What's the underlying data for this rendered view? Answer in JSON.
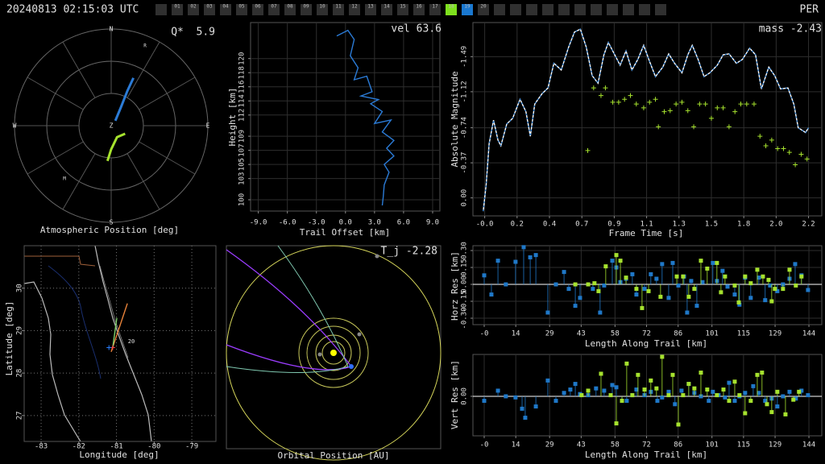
{
  "header": {
    "timestamp": "20240813 02:15:03 UTC",
    "station": "PER",
    "tabs": [
      {
        "label": "01",
        "color": "#303030"
      },
      {
        "label": "02",
        "color": "#303030"
      },
      {
        "label": "03",
        "color": "#303030"
      },
      {
        "label": "04",
        "color": "#303030"
      },
      {
        "label": "05",
        "color": "#303030"
      },
      {
        "label": "06",
        "color": "#303030"
      },
      {
        "label": "07",
        "color": "#303030"
      },
      {
        "label": "08",
        "color": "#303030"
      },
      {
        "label": "09",
        "color": "#303030"
      },
      {
        "label": "10",
        "color": "#303030"
      },
      {
        "label": "11",
        "color": "#303030"
      },
      {
        "label": "12",
        "color": "#303030"
      },
      {
        "label": "13",
        "color": "#303030"
      },
      {
        "label": "14",
        "color": "#303030"
      },
      {
        "label": "15",
        "color": "#303030"
      },
      {
        "label": "16",
        "color": "#303030"
      },
      {
        "label": "17",
        "color": "#303030"
      },
      {
        "label": "18",
        "color": "#7ee01e"
      },
      {
        "label": "19",
        "color": "#1a78d0"
      },
      {
        "label": "20",
        "color": "#303030"
      }
    ]
  },
  "chart_data": [
    {
      "type": "polar",
      "xlabel": "Atmospheric Position [deg]",
      "annotation": "Q*  5.9",
      "directions": [
        "N",
        "E",
        "S",
        "W"
      ],
      "center_label": "Z",
      "labels": [
        "R",
        "M"
      ],
      "rlim": [
        0,
        90
      ],
      "series": [
        {
          "color": "#2b7bd6",
          "azimuth": [
            40,
            28,
            25,
            25
          ],
          "zenith": [
            6,
            19,
            36,
            49
          ]
        },
        {
          "color": "#a6e22e",
          "azimuth": [
            120,
            153,
            180,
            186
          ],
          "zenith": [
            15,
            12,
            22,
            33
          ]
        }
      ]
    },
    {
      "type": "line",
      "xlabel": "Trail Offset [km]",
      "ylabel": "Height [km]",
      "annotation": "vel 63.6",
      "grid": true,
      "xlim": [
        -9.8,
        9.75
      ],
      "ylim": [
        98.4,
        125.1
      ],
      "xticks": [
        {
          "value": -9,
          "label": "-9.0"
        },
        {
          "value": -6,
          "label": "-6.0"
        },
        {
          "value": -3,
          "label": "-3.0"
        },
        {
          "value": 0,
          "label": "0.0"
        },
        {
          "value": 3,
          "label": "3.0"
        },
        {
          "value": 6,
          "label": "6.0"
        },
        {
          "value": 9,
          "label": "9.0"
        }
      ],
      "yticks": [
        100,
        103,
        105,
        107,
        109,
        112,
        114,
        116,
        118,
        120
      ],
      "series": [
        {
          "color": "#2b7bd6",
          "style": "line",
          "x": [
            -0.9,
            0.25,
            0.9,
            0.5,
            1.3,
            0.9,
            2.2,
            2.75,
            1.6,
            3.4,
            2.6,
            3.8,
            3,
            4.7,
            3.8,
            5,
            4.25,
            5,
            4,
            4.5,
            4,
            3.9,
            3.8
          ],
          "values": [
            123.2,
            124,
            122.7,
            120.4,
            118.7,
            117,
            117.5,
            115.3,
            114.7,
            114.2,
            113.6,
            112.5,
            110.8,
            111.3,
            109.6,
            108.4,
            107.3,
            106.2,
            105,
            103.9,
            102.1,
            100.4,
            99.2
          ]
        }
      ]
    },
    {
      "type": "line",
      "xlabel": "Frame Time [s]",
      "ylabel": "Absolute Magnitude",
      "annotation": "mass -2.43",
      "grid": true,
      "xlim": [
        -0.08,
        2.29
      ],
      "ylim": [
        0.19,
        -1.85
      ],
      "xticks": [
        {
          "value": 0,
          "label": "-0.0"
        },
        {
          "value": 0.22,
          "label": "0.2"
        },
        {
          "value": 0.44,
          "label": "0.4"
        },
        {
          "value": 0.66,
          "label": "0.7"
        },
        {
          "value": 0.88,
          "label": "0.9"
        },
        1.1,
        {
          "value": 1.32,
          "label": "1.3"
        },
        {
          "value": 1.54,
          "label": "1.5"
        },
        {
          "value": 1.76,
          "label": "1.8"
        },
        {
          "value": 1.98,
          "label": "2.0"
        },
        2.2
      ],
      "yticks": [
        {
          "value": 0,
          "label": "0.00"
        },
        -0.37,
        -0.74,
        -1.12,
        -1.49
      ],
      "series": [
        {
          "color": "#ffffff",
          "marker_color": "#2f7fd0",
          "style": "line",
          "x": [
            -0.01,
            0.01,
            0.03,
            0.06,
            0.09,
            0.11,
            0.15,
            0.19,
            0.24,
            0.28,
            0.31,
            0.34,
            0.39,
            0.43,
            0.47,
            0.52,
            0.57,
            0.61,
            0.65,
            0.69,
            0.73,
            0.77,
            0.81,
            0.84,
            0.88,
            0.92,
            0.96,
            1.0,
            1.04,
            1.08,
            1.12,
            1.16,
            1.21,
            1.25,
            1.29,
            1.34,
            1.38,
            1.41,
            1.45,
            1.49,
            1.53,
            1.58,
            1.62,
            1.66,
            1.71,
            1.75,
            1.8,
            1.84,
            1.88,
            1.93,
            1.97,
            2.01,
            2.06,
            2.1,
            2.13,
            2.18,
            2.2
          ],
          "values": [
            0.14,
            -0.14,
            -0.57,
            -0.82,
            -0.61,
            -0.55,
            -0.78,
            -0.84,
            -1.04,
            -0.91,
            -0.65,
            -0.99,
            -1.1,
            -1.16,
            -1.42,
            -1.35,
            -1.59,
            -1.75,
            -1.78,
            -1.59,
            -1.29,
            -1.21,
            -1.51,
            -1.64,
            -1.52,
            -1.4,
            -1.55,
            -1.35,
            -1.46,
            -1.61,
            -1.44,
            -1.28,
            -1.38,
            -1.52,
            -1.42,
            -1.32,
            -1.51,
            -1.61,
            -1.46,
            -1.28,
            -1.32,
            -1.4,
            -1.51,
            -1.52,
            -1.42,
            -1.46,
            -1.58,
            -1.51,
            -1.15,
            -1.38,
            -1.29,
            -1.15,
            -1.16,
            -0.99,
            -0.74,
            -0.69,
            -0.74
          ]
        },
        {
          "color": "#a6e22e",
          "style": "plus",
          "x": [
            0.7,
            0.74,
            0.79,
            0.82,
            0.87,
            0.91,
            0.95,
            0.99,
            1.03,
            1.08,
            1.12,
            1.16,
            1.18,
            1.22,
            1.26,
            1.3,
            1.34,
            1.38,
            1.42,
            1.46,
            1.5,
            1.54,
            1.58,
            1.62,
            1.66,
            1.7,
            1.74,
            1.78,
            1.83,
            1.87,
            1.91,
            1.95,
            1.99,
            2.03,
            2.07,
            2.11,
            2.15,
            2.19
          ],
          "values": [
            -0.5,
            -1.16,
            -1.08,
            -1.16,
            -1.01,
            -1.01,
            -1.04,
            -1.08,
            -0.99,
            -0.95,
            -1.01,
            -1.04,
            -0.75,
            -0.91,
            -0.92,
            -0.99,
            -1.01,
            -0.92,
            -0.75,
            -0.99,
            -0.99,
            -0.84,
            -0.95,
            -0.95,
            -0.75,
            -0.91,
            -0.99,
            -0.99,
            -0.99,
            -0.65,
            -0.55,
            -0.61,
            -0.52,
            -0.52,
            -0.48,
            -0.35,
            -0.46,
            -0.41
          ]
        }
      ]
    },
    {
      "type": "map",
      "xlabel": "Longitude [deg]",
      "ylabel": "Latitude [deg]",
      "annotation": "20",
      "grid": true,
      "xlim": [
        -83.45,
        -78.36
      ],
      "ylim": [
        26.39,
        31.0
      ],
      "xticks": [
        -83,
        -82,
        -81,
        -80,
        -79
      ],
      "yticks": [
        27,
        28,
        29,
        30
      ],
      "series": [
        {
          "color": "#e8823a",
          "style": "line",
          "x": [
            -80.71,
            -81.14
          ],
          "values": [
            29.64,
            28.5
          ]
        },
        {
          "color": "#7fd06a",
          "style": "line",
          "x": [
            -80.99,
            -81.1
          ],
          "values": [
            29.3,
            28.6
          ]
        },
        {
          "color": "#ff4040",
          "style": "plus",
          "x": [
            -81.1
          ],
          "values": [
            28.6
          ]
        },
        {
          "color": "#2a7fff",
          "style": "plus",
          "x": [
            -81.2
          ],
          "values": [
            28.6
          ]
        }
      ]
    },
    {
      "type": "orbit",
      "xlabel": "Orbital Position [AU]",
      "annotation": "T_j -2.28"
    },
    {
      "type": "stem",
      "xlabel": "Length Along Trail [km]",
      "ylabel": "Horz Res [km]",
      "grid": true,
      "xlim": [
        -5,
        149.7
      ],
      "ylim": [
        -0.357,
        0.343
      ],
      "xticks": [
        {
          "value": 0,
          "label": "-0"
        },
        14,
        29,
        43,
        58,
        72,
        86,
        101,
        115,
        129,
        144
      ],
      "yticks": [
        {
          "value": 0.3,
          "label": "0.30"
        },
        0.15,
        {
          "value": 0,
          "label": "0.00"
        },
        -0.15,
        {
          "value": -0.3,
          "label": "-0.30"
        }
      ],
      "series": [
        {
          "color": "#1f78c8",
          "x": [
            0,
            3.2,
            6.1,
            9.6,
            13.9,
            17.5,
            20.4,
            22.9,
            28.2,
            31.8,
            35.4,
            37.5,
            40.4,
            42.5,
            48.2,
            51.4,
            53.2,
            56.8,
            58.6,
            60.4,
            62.9,
            65.7,
            67.5,
            71.1,
            73.9,
            76.4,
            78.9,
            81.8,
            83.6,
            86.1,
            88.6,
            90.0,
            91.8,
            94.3,
            96.8,
            101.4,
            103.2,
            105.7,
            107.9,
            111.1,
            113.2,
            115.7,
            118.2,
            121.8,
            124.6,
            126.8,
            130.0,
            132.5,
            135.4,
            137.9,
            140.7,
            143.6
          ],
          "values": [
            0.08,
            -0.09,
            0.21,
            0,
            0.2,
            0.33,
            0.24,
            0.26,
            -0.25,
            0,
            0.11,
            -0.04,
            -0.19,
            -0.12,
            -0.04,
            -0.25,
            -0.01,
            0.21,
            0.15,
            0.02,
            0.05,
            0.09,
            -0.09,
            -0.04,
            0.09,
            0.05,
            0.18,
            -0.12,
            0.19,
            -0.01,
            0.07,
            -0.25,
            0.03,
            -0.19,
            0.02,
            0.19,
            0.03,
            0.12,
            -0.02,
            -0.09,
            -0.18,
            0.06,
            -0.12,
            0.06,
            -0.14,
            -0.01,
            -0.06,
            0,
            0.05,
            0.18,
            0.08,
            -0.05
          ]
        },
        {
          "color": "#a6e22e",
          "x": [
            40.4,
            46.1,
            48.9,
            50.7,
            53.9,
            58.6,
            60.4,
            62.9,
            67.5,
            70.0,
            72.9,
            78.2,
            85.4,
            88.2,
            90.7,
            93.2,
            96.1,
            98.9,
            103.2,
            105.0,
            106.8,
            111.1,
            112.9,
            115.7,
            118.2,
            121.1,
            123.6,
            126.1,
            127.5,
            128.9,
            132.5,
            135.4,
            138.2,
            140.7
          ],
          "values": [
            0,
            0,
            0.01,
            -0.06,
            0.16,
            0.26,
            0.21,
            0.06,
            -0.04,
            -0.21,
            -0.06,
            -0.11,
            0.07,
            0.07,
            -0.11,
            -0.04,
            0.21,
            0.14,
            0.19,
            -0.07,
            0.07,
            -0.01,
            -0.16,
            0.07,
            0.01,
            0.13,
            0.07,
            0.04,
            -0.15,
            -0.04,
            -0.04,
            0.13,
            -0.01,
            0.07
          ]
        }
      ]
    },
    {
      "type": "stem",
      "xlabel": "Length Along Trail [km]",
      "ylabel": "Vert Res [km]",
      "grid": true,
      "xlim": [
        -5,
        149.7
      ],
      "ylim": [
        -0.35,
        0.371
      ],
      "xticks": [
        {
          "value": 0,
          "label": "-0"
        },
        14,
        29,
        43,
        58,
        72,
        86,
        101,
        115,
        129,
        144
      ],
      "yticks": [
        {
          "value": 0,
          "label": "0.00"
        }
      ],
      "series": [
        {
          "color": "#1f78c8",
          "x": [
            0,
            6.1,
            9.6,
            13.9,
            16.8,
            18.2,
            22.9,
            28.2,
            31.8,
            35.4,
            38.2,
            40.4,
            42.5,
            46.1,
            49.6,
            53.2,
            56.8,
            58.6,
            61.1,
            63.2,
            65.7,
            67.5,
            71.1,
            73.9,
            76.8,
            78.9,
            81.8,
            84.6,
            87.5,
            90.7,
            93.2,
            96.1,
            99.6,
            101.4,
            103.9,
            106.8,
            108.6,
            111.1,
            113.2,
            115.7,
            119.3,
            121.8,
            124.6,
            127.5,
            130.0,
            132.5,
            135.4,
            138.2,
            140.7,
            143.6
          ],
          "values": [
            -0.04,
            0.05,
            0,
            -0.01,
            -0.11,
            -0.19,
            -0.09,
            0.14,
            -0.04,
            0.03,
            0.06,
            0.11,
            0.02,
            0.01,
            0.07,
            0.05,
            0.1,
            0.08,
            -0.04,
            -0.04,
            0.01,
            0.06,
            0.01,
            0.04,
            -0.04,
            -0.01,
            0.04,
            -0.07,
            0.05,
            0.11,
            0.03,
            0,
            -0.04,
            0.04,
            0.01,
            -0.01,
            0.12,
            -0.04,
            0,
            0.03,
            0.09,
            0.03,
            -0.04,
            -0.02,
            -0.09,
            0,
            0.04,
            -0.02,
            0.05,
            0.01
          ]
        },
        {
          "color": "#a6e22e",
          "x": [
            43.2,
            46.1,
            51.8,
            56.1,
            58.6,
            61.1,
            63.2,
            65.7,
            68.2,
            71.1,
            73.9,
            76.4,
            78.9,
            81.8,
            83.6,
            86.1,
            88.2,
            90.7,
            93.2,
            96.1,
            98.9,
            103.2,
            106.1,
            108.6,
            111.1,
            113.2,
            115.7,
            118.2,
            121.1,
            123.2,
            125.4,
            127.5,
            130.0,
            133.6,
            137.1,
            139.6
          ],
          "values": [
            0.01,
            0.05,
            0.2,
            0.01,
            -0.24,
            -0.04,
            0.29,
            0.01,
            0.19,
            0.06,
            0.14,
            0.07,
            0.35,
            0.01,
            0.19,
            -0.25,
            0.01,
            0.11,
            0.07,
            0.21,
            0.06,
            0.01,
            0.06,
            -0.04,
            0.13,
            0.01,
            -0.15,
            -0.04,
            0.19,
            0.21,
            -0.07,
            -0.14,
            0.04,
            -0.16,
            -0.03,
            0.04
          ]
        }
      ]
    }
  ]
}
